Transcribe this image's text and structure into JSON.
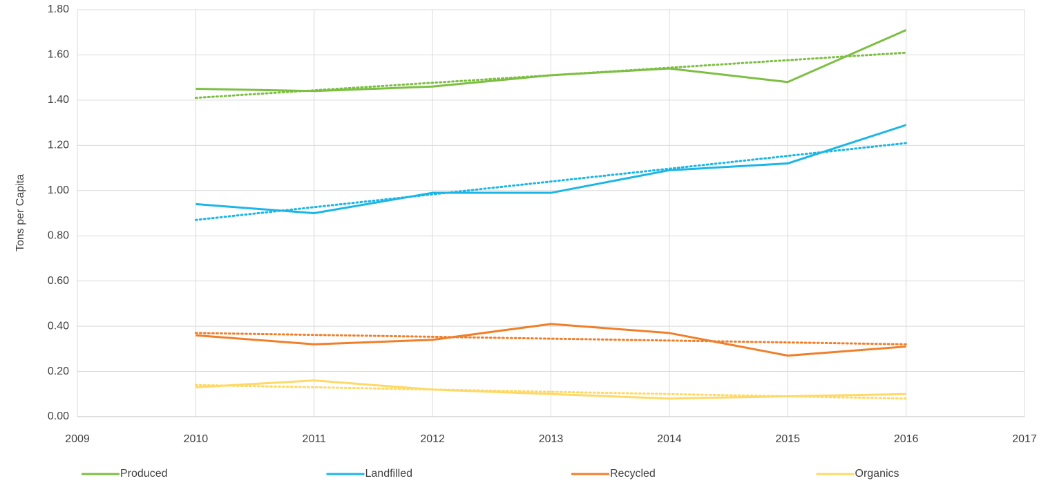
{
  "chart_data": {
    "type": "line",
    "y_label": "Tons per Capita",
    "x": [
      2010,
      2011,
      2012,
      2013,
      2014,
      2015,
      2016
    ],
    "series": [
      {
        "name": "Produced",
        "color": "#7cbf42",
        "values": [
          1.45,
          1.44,
          1.46,
          1.51,
          1.54,
          1.48,
          1.71
        ],
        "trend": [
          1.41,
          1.61
        ]
      },
      {
        "name": "Landfilled",
        "color": "#1bb6e6",
        "values": [
          0.94,
          0.9,
          0.99,
          0.99,
          1.09,
          1.12,
          1.29
        ],
        "trend": [
          0.87,
          1.21
        ]
      },
      {
        "name": "Recycled",
        "color": "#f07f2a",
        "values": [
          0.36,
          0.32,
          0.34,
          0.41,
          0.37,
          0.27,
          0.31
        ],
        "trend": [
          0.37,
          0.32
        ]
      },
      {
        "name": "Organics",
        "color": "#ffd966",
        "values": [
          0.13,
          0.16,
          0.12,
          0.1,
          0.08,
          0.09,
          0.1
        ],
        "trend": [
          0.14,
          0.08
        ]
      }
    ],
    "xlim": [
      2009,
      2017
    ],
    "xticks": [
      2009,
      2010,
      2011,
      2012,
      2013,
      2014,
      2015,
      2016,
      2017
    ],
    "ylim": [
      0,
      1.8
    ],
    "yticks": [
      {
        "value": 0,
        "label": "0.00"
      },
      {
        "value": 0.2,
        "label": "0.20"
      },
      {
        "value": 0.4,
        "label": "0.40"
      },
      {
        "value": 0.6,
        "label": "0.60"
      },
      {
        "value": 0.8,
        "label": "0.80"
      },
      {
        "value": 1.0,
        "label": "1.00"
      },
      {
        "value": 1.2,
        "label": "1.20"
      },
      {
        "value": 1.4,
        "label": "1.40"
      },
      {
        "value": 1.6,
        "label": "1.60"
      },
      {
        "value": 1.8,
        "label": "1.80"
      }
    ],
    "grid": true,
    "legend": "bottom"
  }
}
